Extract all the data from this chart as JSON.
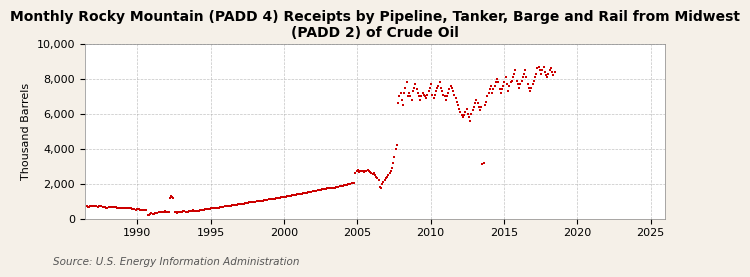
{
  "title": "Monthly Rocky Mountain (PADD 4) Receipts by Pipeline, Tanker, Barge and Rail from Midwest\n(PADD 2) of Crude Oil",
  "ylabel": "Thousand Barrels",
  "source": "Source: U.S. Energy Information Administration",
  "line_color": "#CC0000",
  "background_color": "#F5F0E8",
  "plot_background_color": "#FFFFFF",
  "grid_color": "#AAAAAA",
  "ylim": [
    0,
    10000
  ],
  "yticks": [
    0,
    2000,
    4000,
    6000,
    8000,
    10000
  ],
  "ytick_labels": [
    "0",
    "2,000",
    "4,000",
    "6,000",
    "8,000",
    "10,000"
  ],
  "title_fontsize": 10.0,
  "axis_fontsize": 8.0,
  "source_fontsize": 7.5,
  "marker": "s",
  "marker_size": 1.8,
  "linewidth": 0.0,
  "values": [
    700,
    680,
    660,
    700,
    720,
    730,
    710,
    690,
    700,
    680,
    710,
    720,
    700,
    680,
    660,
    640,
    620,
    630,
    650,
    670,
    660,
    650,
    640,
    660,
    650,
    630,
    610,
    590,
    580,
    600,
    620,
    610,
    600,
    590,
    580,
    590,
    580,
    560,
    540,
    520,
    510,
    520,
    530,
    520,
    510,
    500,
    490,
    490,
    480,
    460,
    180,
    220,
    270,
    300,
    260,
    280,
    300,
    320,
    330,
    360,
    380,
    400,
    370,
    390,
    410,
    400,
    380,
    360,
    1200,
    1300,
    1250,
    1200,
    380,
    360,
    340,
    350,
    360,
    380,
    400,
    420,
    410,
    400,
    390,
    400,
    410,
    430,
    440,
    460,
    450,
    440,
    430,
    440,
    450,
    460,
    480,
    500,
    510,
    520,
    540,
    550,
    560,
    570,
    580,
    600,
    590,
    600,
    610,
    620,
    630,
    640,
    660,
    670,
    680,
    690,
    700,
    720,
    710,
    720,
    730,
    750,
    760,
    770,
    790,
    800,
    810,
    820,
    830,
    840,
    850,
    860,
    880,
    890,
    900,
    920,
    930,
    940,
    950,
    960,
    970,
    980,
    990,
    1000,
    1010,
    1020,
    1030,
    1040,
    1060,
    1070,
    1080,
    1090,
    1100,
    1110,
    1120,
    1130,
    1140,
    1160,
    1170,
    1180,
    1200,
    1210,
    1220,
    1240,
    1250,
    1260,
    1280,
    1290,
    1300,
    1310,
    1320,
    1340,
    1350,
    1360,
    1380,
    1390,
    1400,
    1420,
    1430,
    1440,
    1460,
    1470,
    1480,
    1500,
    1510,
    1530,
    1540,
    1560,
    1570,
    1580,
    1600,
    1610,
    1630,
    1650,
    1660,
    1670,
    1680,
    1700,
    1710,
    1720,
    1730,
    1730,
    1740,
    1750,
    1760,
    1770,
    1790,
    1810,
    1830,
    1840,
    1860,
    1870,
    1890,
    1900,
    1910,
    1930,
    1950,
    1970,
    1990,
    2010,
    2030,
    2050,
    2600,
    2700,
    2800,
    2650,
    2700,
    2750,
    2700,
    2650,
    2700,
    2750,
    2800,
    2700,
    2650,
    2600,
    2550,
    2600,
    2500,
    2400,
    2300,
    2200,
    1800,
    1750,
    2000,
    2100,
    2200,
    2300,
    2400,
    2500,
    2600,
    2700,
    2900,
    3200,
    3500,
    4000,
    4200,
    6600,
    7000,
    7200,
    6800,
    6500,
    7200,
    7500,
    7800,
    7000,
    7200,
    7000,
    6800,
    7300,
    7500,
    7700,
    7400,
    7200,
    7000,
    6800,
    7000,
    7200,
    7100,
    7000,
    6900,
    7100,
    7300,
    7500,
    7700,
    7100,
    6900,
    7100,
    7300,
    7500,
    7600,
    7800,
    7500,
    7300,
    7100,
    7000,
    6800,
    7000,
    7200,
    7400,
    7600,
    7500,
    7300,
    7100,
    6900,
    6700,
    6500,
    6300,
    6100,
    5900,
    5800,
    5900,
    6100,
    6300,
    6000,
    5800,
    5600,
    6000,
    6200,
    6400,
    6600,
    6800,
    6600,
    6400,
    6200,
    6400,
    3100,
    3200,
    6500,
    6700,
    7000,
    7200,
    7400,
    7600,
    7200,
    7400,
    7600,
    7800,
    8000,
    7800,
    7400,
    7200,
    7400,
    7600,
    7800,
    8100,
    7700,
    7300,
    7600,
    7800,
    7900,
    8100,
    8300,
    8500,
    7900,
    7700,
    7500,
    7700,
    7900,
    8100,
    8300,
    8500,
    8100,
    7700,
    7500,
    7300,
    7500,
    7700,
    7900,
    8100,
    8300,
    8600,
    8700,
    8500,
    8300,
    8500,
    8700,
    8400,
    8200,
    8100,
    8300,
    8500,
    8600,
    8400,
    8200,
    8400
  ],
  "start_year": 1986,
  "start_month": 7
}
